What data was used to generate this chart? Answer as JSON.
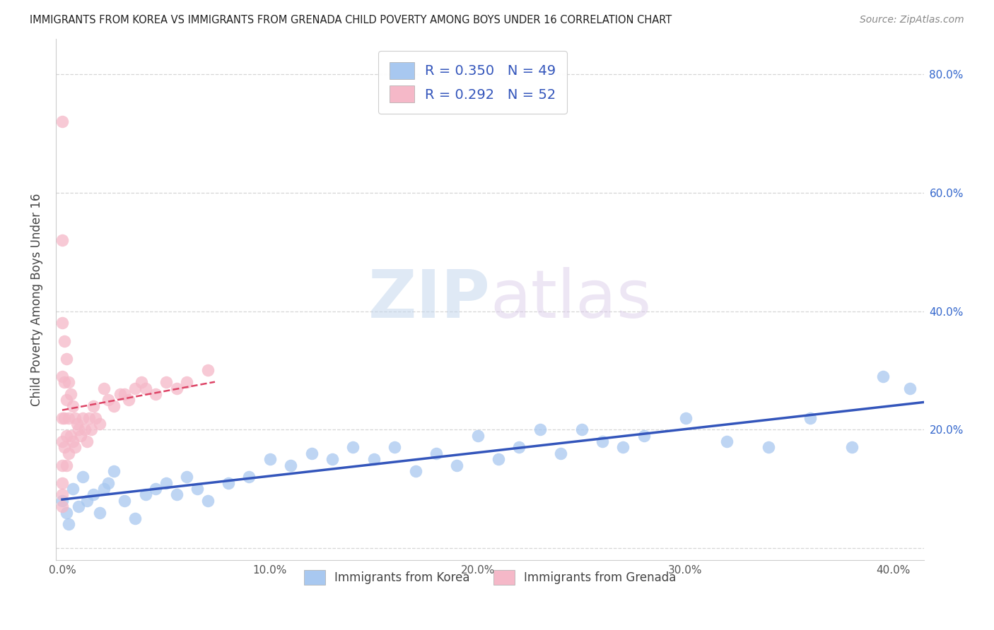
{
  "title": "IMMIGRANTS FROM KOREA VS IMMIGRANTS FROM GRENADA CHILD POVERTY AMONG BOYS UNDER 16 CORRELATION CHART",
  "source": "Source: ZipAtlas.com",
  "ylabel": "Child Poverty Among Boys Under 16",
  "legend_bottom": [
    "Immigrants from Korea",
    "Immigrants from Grenada"
  ],
  "R_korea": 0.35,
  "N_korea": 49,
  "R_grenada": 0.292,
  "N_grenada": 52,
  "xlim": [
    -0.003,
    0.415
  ],
  "ylim": [
    -0.02,
    0.86
  ],
  "xtick_vals": [
    0.0,
    0.1,
    0.2,
    0.3,
    0.4
  ],
  "xticklabels": [
    "0.0%",
    "10.0%",
    "20.0%",
    "30.0%",
    "40.0%"
  ],
  "ytick_vals": [
    0.0,
    0.2,
    0.4,
    0.6,
    0.8
  ],
  "yticklabels_right": [
    "",
    "20.0%",
    "40.0%",
    "60.0%",
    "80.0%"
  ],
  "color_korea": "#a8c8f0",
  "color_grenada": "#f5b8c8",
  "line_color_korea": "#3355bb",
  "line_color_grenada": "#dd4466",
  "korea_x": [
    0.0,
    0.002,
    0.003,
    0.005,
    0.008,
    0.01,
    0.012,
    0.015,
    0.018,
    0.02,
    0.022,
    0.025,
    0.03,
    0.035,
    0.04,
    0.045,
    0.05,
    0.055,
    0.06,
    0.065,
    0.07,
    0.08,
    0.09,
    0.1,
    0.11,
    0.12,
    0.13,
    0.14,
    0.15,
    0.16,
    0.17,
    0.18,
    0.19,
    0.2,
    0.21,
    0.22,
    0.23,
    0.24,
    0.25,
    0.26,
    0.27,
    0.28,
    0.3,
    0.32,
    0.34,
    0.36,
    0.38,
    0.395,
    0.408
  ],
  "korea_y": [
    0.08,
    0.06,
    0.04,
    0.1,
    0.07,
    0.12,
    0.08,
    0.09,
    0.06,
    0.1,
    0.11,
    0.13,
    0.08,
    0.05,
    0.09,
    0.1,
    0.11,
    0.09,
    0.12,
    0.1,
    0.08,
    0.11,
    0.12,
    0.15,
    0.14,
    0.16,
    0.15,
    0.17,
    0.15,
    0.17,
    0.13,
    0.16,
    0.14,
    0.19,
    0.15,
    0.17,
    0.2,
    0.16,
    0.2,
    0.18,
    0.17,
    0.19,
    0.22,
    0.18,
    0.17,
    0.22,
    0.17,
    0.29,
    0.27
  ],
  "grenada_x": [
    0.0,
    0.0,
    0.0,
    0.0,
    0.0,
    0.0,
    0.0,
    0.0,
    0.0,
    0.0,
    0.001,
    0.001,
    0.001,
    0.001,
    0.002,
    0.002,
    0.002,
    0.002,
    0.003,
    0.003,
    0.003,
    0.004,
    0.004,
    0.005,
    0.005,
    0.006,
    0.006,
    0.007,
    0.008,
    0.009,
    0.01,
    0.011,
    0.012,
    0.013,
    0.014,
    0.015,
    0.016,
    0.018,
    0.02,
    0.022,
    0.025,
    0.028,
    0.03,
    0.032,
    0.035,
    0.038,
    0.04,
    0.045,
    0.05,
    0.055,
    0.06,
    0.07
  ],
  "grenada_y": [
    0.72,
    0.52,
    0.38,
    0.29,
    0.22,
    0.18,
    0.14,
    0.11,
    0.09,
    0.07,
    0.35,
    0.28,
    0.22,
    0.17,
    0.32,
    0.25,
    0.19,
    0.14,
    0.28,
    0.22,
    0.16,
    0.26,
    0.19,
    0.24,
    0.18,
    0.22,
    0.17,
    0.21,
    0.2,
    0.19,
    0.22,
    0.2,
    0.18,
    0.22,
    0.2,
    0.24,
    0.22,
    0.21,
    0.27,
    0.25,
    0.24,
    0.26,
    0.26,
    0.25,
    0.27,
    0.28,
    0.27,
    0.26,
    0.28,
    0.27,
    0.28,
    0.3
  ]
}
